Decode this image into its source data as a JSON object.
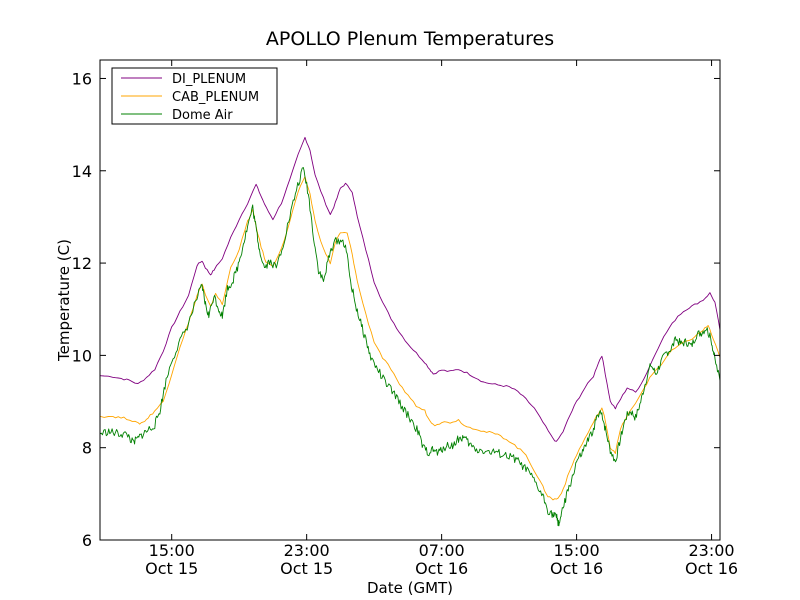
{
  "chart_data": {
    "type": "line",
    "title": "APOLLO Plenum Temperatures",
    "xlabel": "Date (GMT)",
    "ylabel": "Temperature (C)",
    "x_unit": "hours since Oct 15 00:00 GMT",
    "xlim": [
      10.75,
      47.5
    ],
    "ylim": [
      6,
      16.4
    ],
    "y_ticks": [
      6,
      8,
      10,
      12,
      14,
      16
    ],
    "x_ticks": [
      {
        "x": 15,
        "time": "15:00",
        "date": "Oct 15"
      },
      {
        "x": 23,
        "time": "23:00",
        "date": "Oct 15"
      },
      {
        "x": 31,
        "time": "07:00",
        "date": "Oct 16"
      },
      {
        "x": 39,
        "time": "15:00",
        "date": "Oct 16"
      },
      {
        "x": 47,
        "time": "23:00",
        "date": "Oct 16"
      }
    ],
    "legend_position": "top-left",
    "series": [
      {
        "name": "DI_PLENUM",
        "color": "#800080",
        "points": [
          [
            10.75,
            9.56
          ],
          [
            11.5,
            9.54
          ],
          [
            12.0,
            9.5
          ],
          [
            12.5,
            9.46
          ],
          [
            13.0,
            9.38
          ],
          [
            13.5,
            9.52
          ],
          [
            14.0,
            9.7
          ],
          [
            14.5,
            10.1
          ],
          [
            15.0,
            10.6
          ],
          [
            15.5,
            10.95
          ],
          [
            16.0,
            11.3
          ],
          [
            16.5,
            11.95
          ],
          [
            16.8,
            12.05
          ],
          [
            17.0,
            11.9
          ],
          [
            17.3,
            11.75
          ],
          [
            17.5,
            11.85
          ],
          [
            18.0,
            12.1
          ],
          [
            18.5,
            12.55
          ],
          [
            19.0,
            12.95
          ],
          [
            19.5,
            13.3
          ],
          [
            20.0,
            13.7
          ],
          [
            20.3,
            13.45
          ],
          [
            20.6,
            13.2
          ],
          [
            21.0,
            12.95
          ],
          [
            21.5,
            13.3
          ],
          [
            22.0,
            13.8
          ],
          [
            22.5,
            14.35
          ],
          [
            22.9,
            14.72
          ],
          [
            23.2,
            14.45
          ],
          [
            23.5,
            13.9
          ],
          [
            24.0,
            13.4
          ],
          [
            24.4,
            13.05
          ],
          [
            24.7,
            13.3
          ],
          [
            25.0,
            13.62
          ],
          [
            25.3,
            13.72
          ],
          [
            25.7,
            13.55
          ],
          [
            26.0,
            13.0
          ],
          [
            26.5,
            12.3
          ],
          [
            27.0,
            11.6
          ],
          [
            27.5,
            11.15
          ],
          [
            28.0,
            10.8
          ],
          [
            28.5,
            10.5
          ],
          [
            29.0,
            10.25
          ],
          [
            29.5,
            10.05
          ],
          [
            30.0,
            9.85
          ],
          [
            30.3,
            9.7
          ],
          [
            30.5,
            9.6
          ],
          [
            31.0,
            9.68
          ],
          [
            31.5,
            9.65
          ],
          [
            32.0,
            9.7
          ],
          [
            32.5,
            9.62
          ],
          [
            33.0,
            9.52
          ],
          [
            33.5,
            9.42
          ],
          [
            34.0,
            9.38
          ],
          [
            34.5,
            9.35
          ],
          [
            35.0,
            9.32
          ],
          [
            35.5,
            9.22
          ],
          [
            36.0,
            9.05
          ],
          [
            36.5,
            8.85
          ],
          [
            37.0,
            8.55
          ],
          [
            37.5,
            8.25
          ],
          [
            37.8,
            8.12
          ],
          [
            38.2,
            8.35
          ],
          [
            38.6,
            8.7
          ],
          [
            39.0,
            9.0
          ],
          [
            39.5,
            9.3
          ],
          [
            40.0,
            9.55
          ],
          [
            40.3,
            9.85
          ],
          [
            40.5,
            10.0
          ],
          [
            40.7,
            9.6
          ],
          [
            41.0,
            9.0
          ],
          [
            41.3,
            8.85
          ],
          [
            41.6,
            9.05
          ],
          [
            42.0,
            9.3
          ],
          [
            42.5,
            9.2
          ],
          [
            43.0,
            9.5
          ],
          [
            43.5,
            9.9
          ],
          [
            44.0,
            10.3
          ],
          [
            44.5,
            10.6
          ],
          [
            45.0,
            10.85
          ],
          [
            45.5,
            11.0
          ],
          [
            46.0,
            11.1
          ],
          [
            46.5,
            11.2
          ],
          [
            46.9,
            11.35
          ],
          [
            47.2,
            11.15
          ],
          [
            47.5,
            10.55
          ]
        ]
      },
      {
        "name": "CAB_PLENUM",
        "color": "#ffa500",
        "points": [
          [
            10.75,
            8.68
          ],
          [
            11.5,
            8.68
          ],
          [
            12.0,
            8.65
          ],
          [
            12.5,
            8.62
          ],
          [
            13.0,
            8.52
          ],
          [
            13.3,
            8.55
          ],
          [
            13.6,
            8.65
          ],
          [
            14.0,
            8.8
          ],
          [
            14.5,
            9.0
          ],
          [
            15.0,
            9.6
          ],
          [
            15.5,
            10.2
          ],
          [
            16.0,
            10.7
          ],
          [
            16.5,
            11.3
          ],
          [
            16.8,
            11.55
          ],
          [
            17.0,
            11.3
          ],
          [
            17.3,
            11.05
          ],
          [
            17.6,
            11.35
          ],
          [
            18.0,
            11.1
          ],
          [
            18.5,
            11.9
          ],
          [
            19.0,
            12.3
          ],
          [
            19.5,
            12.9
          ],
          [
            19.8,
            13.15
          ],
          [
            20.0,
            12.8
          ],
          [
            20.3,
            12.35
          ],
          [
            20.6,
            12.0
          ],
          [
            21.0,
            11.95
          ],
          [
            21.5,
            12.3
          ],
          [
            22.0,
            12.9
          ],
          [
            22.5,
            13.55
          ],
          [
            22.9,
            13.85
          ],
          [
            23.2,
            13.5
          ],
          [
            23.5,
            12.9
          ],
          [
            24.0,
            12.3
          ],
          [
            24.4,
            12.0
          ],
          [
            24.7,
            12.45
          ],
          [
            25.0,
            12.65
          ],
          [
            25.4,
            12.65
          ],
          [
            25.7,
            12.2
          ],
          [
            26.0,
            11.6
          ],
          [
            26.5,
            10.9
          ],
          [
            27.0,
            10.3
          ],
          [
            27.5,
            9.95
          ],
          [
            28.0,
            9.7
          ],
          [
            28.5,
            9.35
          ],
          [
            29.0,
            9.15
          ],
          [
            29.5,
            8.9
          ],
          [
            30.0,
            8.8
          ],
          [
            30.3,
            8.58
          ],
          [
            30.6,
            8.5
          ],
          [
            31.0,
            8.55
          ],
          [
            31.5,
            8.55
          ],
          [
            32.0,
            8.6
          ],
          [
            32.5,
            8.45
          ],
          [
            33.0,
            8.42
          ],
          [
            33.5,
            8.35
          ],
          [
            34.0,
            8.32
          ],
          [
            34.5,
            8.25
          ],
          [
            35.0,
            8.15
          ],
          [
            35.5,
            8.0
          ],
          [
            36.0,
            7.85
          ],
          [
            36.5,
            7.5
          ],
          [
            37.0,
            7.15
          ],
          [
            37.3,
            6.95
          ],
          [
            37.6,
            6.88
          ],
          [
            37.9,
            6.9
          ],
          [
            38.2,
            7.1
          ],
          [
            38.6,
            7.5
          ],
          [
            39.0,
            7.85
          ],
          [
            39.5,
            8.2
          ],
          [
            40.0,
            8.55
          ],
          [
            40.3,
            8.75
          ],
          [
            40.5,
            8.85
          ],
          [
            40.7,
            8.6
          ],
          [
            41.0,
            8.0
          ],
          [
            41.3,
            7.9
          ],
          [
            41.6,
            8.4
          ],
          [
            42.0,
            8.7
          ],
          [
            42.5,
            8.95
          ],
          [
            43.0,
            9.3
          ],
          [
            43.5,
            9.6
          ],
          [
            44.0,
            9.8
          ],
          [
            44.5,
            10.05
          ],
          [
            45.0,
            10.2
          ],
          [
            45.5,
            10.3
          ],
          [
            46.0,
            10.4
          ],
          [
            46.5,
            10.55
          ],
          [
            46.8,
            10.65
          ],
          [
            47.1,
            10.35
          ],
          [
            47.5,
            9.95
          ]
        ]
      },
      {
        "name": "Dome Air",
        "color": "#008000",
        "points": [
          [
            10.75,
            8.3
          ],
          [
            11.2,
            8.35
          ],
          [
            11.6,
            8.32
          ],
          [
            12.0,
            8.3
          ],
          [
            12.4,
            8.28
          ],
          [
            12.7,
            8.1
          ],
          [
            13.0,
            8.2
          ],
          [
            13.3,
            8.3
          ],
          [
            13.6,
            8.38
          ],
          [
            14.0,
            8.5
          ],
          [
            14.3,
            8.8
          ],
          [
            14.6,
            9.35
          ],
          [
            15.0,
            9.9
          ],
          [
            15.5,
            10.3
          ],
          [
            16.0,
            10.7
          ],
          [
            16.5,
            11.25
          ],
          [
            16.8,
            11.5
          ],
          [
            17.0,
            11.1
          ],
          [
            17.2,
            10.85
          ],
          [
            17.5,
            11.3
          ],
          [
            17.8,
            11.0
          ],
          [
            18.0,
            10.85
          ],
          [
            18.3,
            11.45
          ],
          [
            18.6,
            11.6
          ],
          [
            18.9,
            11.9
          ],
          [
            19.2,
            12.35
          ],
          [
            19.5,
            12.8
          ],
          [
            19.8,
            13.2
          ],
          [
            20.0,
            12.75
          ],
          [
            20.2,
            12.3
          ],
          [
            20.5,
            11.9
          ],
          [
            20.8,
            12.05
          ],
          [
            21.2,
            11.9
          ],
          [
            21.6,
            12.4
          ],
          [
            22.0,
            13.0
          ],
          [
            22.4,
            13.6
          ],
          [
            22.8,
            14.05
          ],
          [
            23.1,
            13.5
          ],
          [
            23.4,
            12.6
          ],
          [
            23.7,
            11.85
          ],
          [
            24.0,
            11.6
          ],
          [
            24.3,
            12.1
          ],
          [
            24.6,
            12.45
          ],
          [
            25.0,
            12.5
          ],
          [
            25.3,
            12.4
          ],
          [
            25.6,
            11.6
          ],
          [
            25.9,
            11.1
          ],
          [
            26.2,
            10.7
          ],
          [
            26.5,
            10.35
          ],
          [
            26.8,
            9.95
          ],
          [
            27.2,
            9.7
          ],
          [
            27.6,
            9.45
          ],
          [
            28.0,
            9.25
          ],
          [
            28.4,
            9.05
          ],
          [
            28.8,
            8.8
          ],
          [
            29.2,
            8.6
          ],
          [
            29.6,
            8.35
          ],
          [
            29.9,
            8.0
          ],
          [
            30.2,
            7.9
          ],
          [
            30.5,
            7.95
          ],
          [
            30.8,
            7.88
          ],
          [
            31.1,
            8.0
          ],
          [
            31.4,
            8.05
          ],
          [
            31.7,
            8.05
          ],
          [
            32.0,
            8.2
          ],
          [
            32.3,
            8.22
          ],
          [
            32.6,
            8.1
          ],
          [
            33.0,
            7.95
          ],
          [
            33.4,
            7.95
          ],
          [
            33.8,
            7.9
          ],
          [
            34.2,
            7.9
          ],
          [
            34.6,
            7.85
          ],
          [
            35.0,
            7.8
          ],
          [
            35.4,
            7.75
          ],
          [
            35.8,
            7.6
          ],
          [
            36.2,
            7.45
          ],
          [
            36.6,
            7.2
          ],
          [
            37.0,
            6.95
          ],
          [
            37.3,
            6.65
          ],
          [
            37.6,
            6.55
          ],
          [
            37.8,
            6.5
          ],
          [
            37.95,
            6.35
          ],
          [
            38.1,
            6.55
          ],
          [
            38.4,
            6.95
          ],
          [
            38.7,
            7.3
          ],
          [
            39.0,
            7.7
          ],
          [
            39.3,
            7.85
          ],
          [
            39.6,
            8.1
          ],
          [
            39.9,
            8.3
          ],
          [
            40.2,
            8.65
          ],
          [
            40.5,
            8.75
          ],
          [
            40.7,
            8.4
          ],
          [
            41.0,
            7.95
          ],
          [
            41.3,
            7.7
          ],
          [
            41.6,
            8.2
          ],
          [
            41.9,
            8.65
          ],
          [
            42.2,
            8.8
          ],
          [
            42.5,
            8.65
          ],
          [
            42.8,
            9.0
          ],
          [
            43.1,
            9.45
          ],
          [
            43.4,
            9.8
          ],
          [
            43.7,
            9.6
          ],
          [
            44.0,
            9.85
          ],
          [
            44.3,
            10.05
          ],
          [
            44.6,
            10.15
          ],
          [
            44.9,
            10.35
          ],
          [
            45.2,
            10.25
          ],
          [
            45.5,
            10.3
          ],
          [
            45.8,
            10.2
          ],
          [
            46.1,
            10.45
          ],
          [
            46.4,
            10.5
          ],
          [
            46.7,
            10.6
          ],
          [
            47.0,
            10.3
          ],
          [
            47.2,
            9.9
          ],
          [
            47.5,
            9.45
          ]
        ]
      }
    ]
  }
}
